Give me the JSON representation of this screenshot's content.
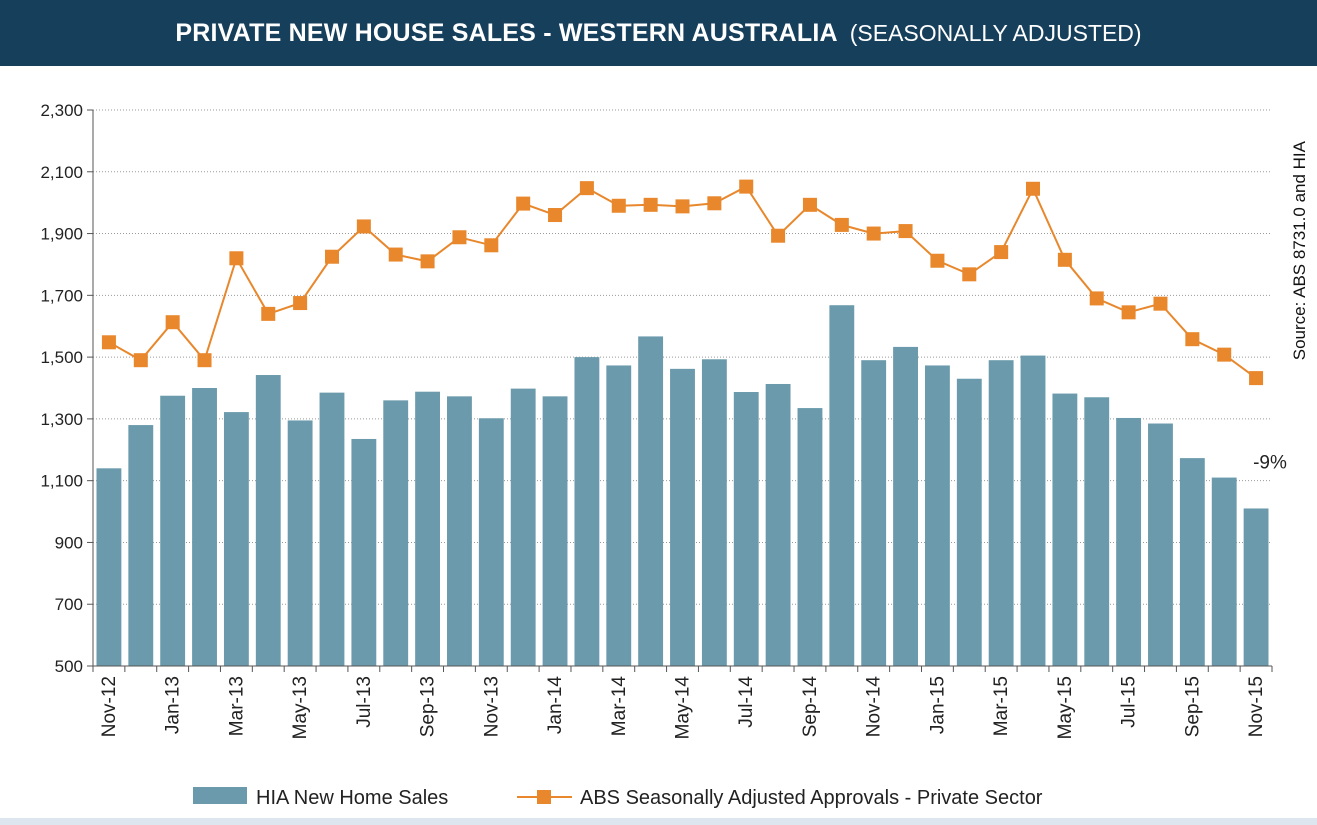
{
  "chart_data": {
    "type": "bar",
    "title": "PRIVATE NEW HOUSE SALES -  WESTERN AUSTRALIA",
    "subtitle": "(SEASONALLY ADJUSTED)",
    "source": "Source: ABS 8731.0 and HIA",
    "ylim": [
      500,
      2300
    ],
    "yticks": [
      "500",
      "700",
      "900",
      "1,100",
      "1,300",
      "1,500",
      "1,700",
      "1,900",
      "2,100",
      "2,300"
    ],
    "categories": [
      "Nov-12",
      "Dec-12",
      "Jan-13",
      "Feb-13",
      "Mar-13",
      "Apr-13",
      "May-13",
      "Jun-13",
      "Jul-13",
      "Aug-13",
      "Sep-13",
      "Oct-13",
      "Nov-13",
      "Dec-13",
      "Jan-14",
      "Feb-14",
      "Mar-14",
      "Apr-14",
      "May-14",
      "Jun-14",
      "Jul-14",
      "Aug-14",
      "Sep-14",
      "Oct-14",
      "Nov-14",
      "Dec-14",
      "Jan-15",
      "Feb-15",
      "Mar-15",
      "Apr-15",
      "May-15",
      "Jun-15",
      "Jul-15",
      "Aug-15",
      "Sep-15",
      "Oct-15",
      "Nov-15"
    ],
    "tick_labels": [
      "Nov-12",
      "Jan-13",
      "Mar-13",
      "May-13",
      "Jul-13",
      "Sep-13",
      "Nov-13",
      "Jan-14",
      "Mar-14",
      "May-14",
      "Jul-14",
      "Sep-14",
      "Nov-14",
      "Jan-15",
      "Mar-15",
      "May-15",
      "Jul-15",
      "Sep-15",
      "Nov-15"
    ],
    "series": [
      {
        "name": "HIA New Home Sales",
        "kind": "bar",
        "color": "#6a9aab",
        "values": [
          1140,
          1280,
          1375,
          1400,
          1322,
          1442,
          1295,
          1385,
          1235,
          1360,
          1388,
          1373,
          1302,
          1398,
          1373,
          1500,
          1473,
          1567,
          1462,
          1493,
          1387,
          1413,
          1335,
          1668,
          1490,
          1533,
          1473,
          1430,
          1490,
          1505,
          1382,
          1370,
          1303,
          1285,
          1173,
          1110,
          1010
        ]
      },
      {
        "name": "ABS Seasonally Adjusted Approvals - Private Sector",
        "kind": "line",
        "color": "#e8872c",
        "values": [
          1548,
          1490,
          1613,
          1490,
          1820,
          1640,
          1675,
          1825,
          1923,
          1832,
          1810,
          1888,
          1862,
          1997,
          1960,
          2047,
          1990,
          1993,
          1988,
          1998,
          2052,
          1893,
          1993,
          1928,
          1900,
          1908,
          1812,
          1768,
          1840,
          2045,
          1815,
          1690,
          1645,
          1673,
          1558,
          1508,
          1432
        ]
      }
    ],
    "annotation": "-9%"
  }
}
